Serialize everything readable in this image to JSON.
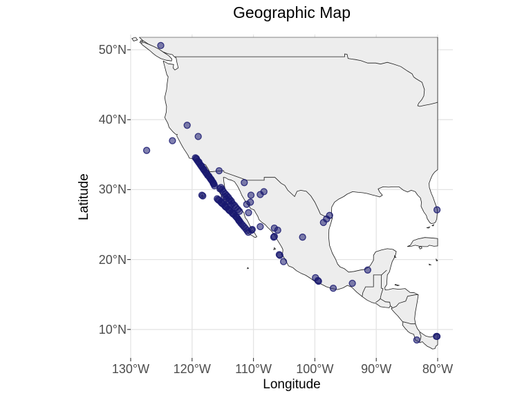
{
  "title": "Geographic Map",
  "axes": {
    "x": {
      "label": "Longitude",
      "ticks": [
        {
          "label": "130°W",
          "lon": -130
        },
        {
          "label": "120°W",
          "lon": -120
        },
        {
          "label": "110°W",
          "lon": -110
        },
        {
          "label": "100°W",
          "lon": -100
        },
        {
          "label": "90°W",
          "lon": -90
        },
        {
          "label": "80°W",
          "lon": -80
        }
      ]
    },
    "y": {
      "label": "Latitude",
      "ticks": [
        {
          "label": "50°N",
          "lat": 50
        },
        {
          "label": "40°N",
          "lat": 40
        },
        {
          "label": "30°N",
          "lat": 30
        },
        {
          "label": "20°N",
          "lat": 20
        },
        {
          "label": "10°N",
          "lat": 10
        }
      ]
    }
  },
  "colors": {
    "point": "#191970",
    "land_fill": "#ededed",
    "land_outline": "#1a1a1a",
    "gridline": "#e4e4e4",
    "tick_mark": "#333333",
    "tick_label": "#4d4d4d",
    "background": "#ffffff"
  },
  "chart_data": {
    "type": "scatter",
    "title": "Geographic Map",
    "xlabel": "Longitude",
    "ylabel": "Latitude",
    "xlim": [
      -130,
      -77.6
    ],
    "ylim": [
      5.9,
      51.9
    ],
    "grid": true,
    "basemap": "north-america-land-outlines",
    "point_style": {
      "color": "#191970",
      "fill_opacity": 0.55,
      "stroke_opacity": 0.85,
      "radius_px": 4.5
    },
    "points": [
      [
        -125.1,
        50.6
      ],
      [
        -127.4,
        35.6
      ],
      [
        -123.2,
        37.0
      ],
      [
        -120.8,
        39.2
      ],
      [
        -119.0,
        37.6
      ],
      [
        -115.6,
        32.7
      ],
      [
        -111.5,
        31.0
      ],
      [
        -110.4,
        29.2
      ],
      [
        -108.9,
        29.3
      ],
      [
        -108.3,
        29.7
      ],
      [
        -111.1,
        27.9
      ],
      [
        -110.8,
        26.7
      ],
      [
        -110.5,
        28.2
      ],
      [
        -110.2,
        24.3
      ],
      [
        -110.3,
        24.2
      ],
      [
        -108.9,
        24.7
      ],
      [
        -106.6,
        24.5
      ],
      [
        -106.05,
        24.2
      ],
      [
        -106.6,
        23.3
      ],
      [
        -106.7,
        23.2
      ],
      [
        -102.0,
        23.2
      ],
      [
        -97.6,
        26.3
      ],
      [
        -98.1,
        25.8
      ],
      [
        -98.6,
        25.3
      ],
      [
        -105.7,
        20.6
      ],
      [
        -105.8,
        20.7
      ],
      [
        -105.1,
        19.7
      ],
      [
        -99.9,
        17.4
      ],
      [
        -99.4,
        16.9
      ],
      [
        -99.5,
        17.0
      ],
      [
        -97.0,
        15.9
      ],
      [
        -93.9,
        16.6
      ],
      [
        -91.4,
        18.5
      ],
      [
        -80.1,
        27.1
      ],
      [
        -83.4,
        8.5
      ],
      [
        -80.1,
        9.0
      ],
      [
        -80.2,
        9.0
      ],
      [
        -118.4,
        29.2
      ],
      [
        -118.25,
        29.1
      ],
      [
        -119.45,
        34.55
      ],
      [
        -119.25,
        34.3
      ],
      [
        -119.05,
        34.05
      ],
      [
        -118.85,
        33.8
      ],
      [
        -118.65,
        33.55
      ],
      [
        -118.45,
        33.3
      ],
      [
        -118.25,
        33.05
      ],
      [
        -118.05,
        32.8
      ],
      [
        -117.85,
        32.55
      ],
      [
        -117.65,
        32.3
      ],
      [
        -117.45,
        32.05
      ],
      [
        -117.2,
        31.8
      ],
      [
        -117.0,
        31.55
      ],
      [
        -116.8,
        31.3
      ],
      [
        -116.6,
        31.05
      ],
      [
        -116.45,
        30.8
      ],
      [
        -116.35,
        30.55
      ],
      [
        -119.3,
        34.45
      ],
      [
        -118.9,
        33.95
      ],
      [
        -118.5,
        33.4
      ],
      [
        -118.1,
        32.9
      ],
      [
        -117.7,
        32.4
      ],
      [
        -117.3,
        31.95
      ],
      [
        -116.9,
        31.45
      ],
      [
        -116.55,
        30.9
      ],
      [
        -115.9,
        28.7
      ],
      [
        -115.6,
        28.45
      ],
      [
        -115.3,
        28.2
      ],
      [
        -115.0,
        27.95
      ],
      [
        -114.7,
        27.7
      ],
      [
        -114.4,
        27.45
      ],
      [
        -114.1,
        27.2
      ],
      [
        -113.8,
        26.95
      ],
      [
        -113.5,
        26.7
      ],
      [
        -113.2,
        26.45
      ],
      [
        -112.9,
        26.2
      ],
      [
        -112.65,
        25.95
      ],
      [
        -112.45,
        25.7
      ],
      [
        -112.25,
        25.45
      ],
      [
        -112.05,
        25.2
      ],
      [
        -115.75,
        28.55
      ],
      [
        -115.15,
        28.05
      ],
      [
        -114.55,
        27.55
      ],
      [
        -113.95,
        27.05
      ],
      [
        -113.35,
        26.55
      ],
      [
        -112.75,
        26.05
      ],
      [
        -112.35,
        25.55
      ],
      [
        -115.3,
        30.3
      ],
      [
        -115.1,
        30.0
      ],
      [
        -114.9,
        29.7
      ],
      [
        -114.6,
        29.4
      ],
      [
        -114.35,
        29.15
      ],
      [
        -114.1,
        28.9
      ],
      [
        -113.85,
        28.6
      ],
      [
        -113.6,
        28.35
      ],
      [
        -114.4,
        28.7
      ],
      [
        -114.0,
        28.35
      ],
      [
        -113.4,
        28.0
      ],
      [
        -113.1,
        27.75
      ],
      [
        -112.85,
        27.45
      ],
      [
        -112.55,
        27.15
      ],
      [
        -112.3,
        26.9
      ],
      [
        -113.7,
        27.8
      ],
      [
        -114.75,
        29.0
      ],
      [
        -115.45,
        30.1
      ],
      [
        -111.8,
        24.95
      ],
      [
        -111.55,
        24.7
      ],
      [
        -111.3,
        24.45
      ],
      [
        -111.05,
        24.15
      ],
      [
        -110.85,
        23.9
      ]
    ]
  }
}
